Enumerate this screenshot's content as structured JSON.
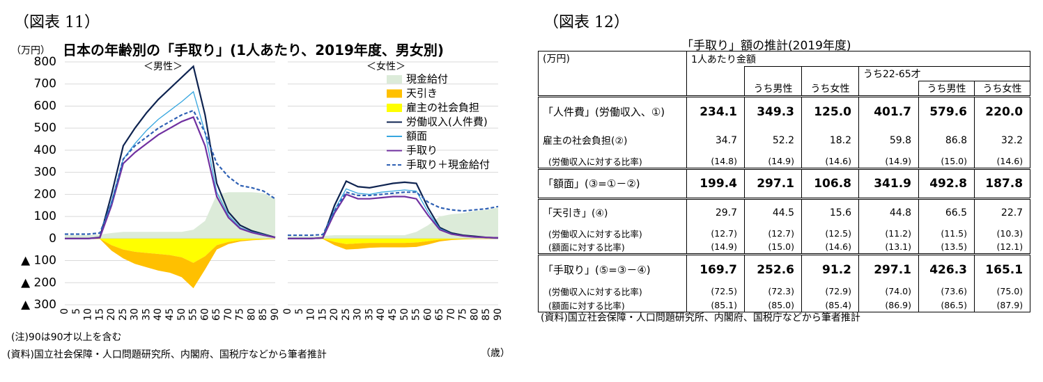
{
  "figure11": {
    "label": "（図表 11）",
    "title": "日本の年齢別の「手取り」(1人あたり、2019年度、男女別)",
    "unit": "（万円）",
    "x_unit": "（歳）",
    "notes": [
      "(注)90は90才以上を含む",
      "(資料)国立社会保障・人口問題研究所、内閣府、国税庁などから筆者推計"
    ],
    "legend": [
      {
        "name": "現金給付",
        "color": "#dcebd9",
        "kind": "area"
      },
      {
        "name": "天引き",
        "color": "#ffc000",
        "kind": "bar"
      },
      {
        "name": "雇主の社会負担",
        "color": "#ffff00",
        "kind": "bar"
      },
      {
        "name": "労働収入(人件費)",
        "color": "#0e2350",
        "kind": "line"
      },
      {
        "name": "額面",
        "color": "#36a6df",
        "kind": "line"
      },
      {
        "name": "手取り",
        "color": "#7030a0",
        "kind": "line"
      },
      {
        "name": "手取り＋現金給付",
        "color": "#2e60b4",
        "kind": "dashed"
      }
    ]
  },
  "chart_data": [
    {
      "type": "area-line",
      "subtitle": "＜男性＞",
      "x": [
        0,
        5,
        10,
        15,
        20,
        25,
        30,
        35,
        40,
        45,
        50,
        55,
        60,
        65,
        70,
        75,
        80,
        85,
        90
      ],
      "xlim": [
        0,
        90
      ],
      "xticks": [
        0,
        5,
        10,
        15,
        20,
        25,
        30,
        35,
        40,
        45,
        50,
        55,
        60,
        65,
        70,
        75,
        80,
        85,
        90
      ],
      "ylim": [
        -300,
        800
      ],
      "yticks": [
        {
          "value": -300,
          "label": "▲ 300"
        },
        {
          "value": -200,
          "label": "▲ 200"
        },
        {
          "value": -100,
          "label": "▲ 100"
        },
        0,
        100,
        200,
        300,
        400,
        500,
        600,
        700,
        800
      ],
      "grid": true,
      "series": [
        {
          "values": [
            15,
            15,
            15,
            18,
            25,
            30,
            30,
            30,
            30,
            30,
            30,
            40,
            80,
            200,
            210,
            210,
            210,
            205,
            180
          ]
        },
        {
          "values": [
            0,
            0,
            0,
            -1,
            -25,
            -40,
            -55,
            -65,
            -75,
            -80,
            -90,
            -115,
            -60,
            -20,
            -10,
            -5,
            -3,
            -2,
            -1
          ]
        },
        {
          "values": [
            0,
            0,
            0,
            -1,
            -30,
            -50,
            -60,
            -65,
            -70,
            -75,
            -85,
            -110,
            -80,
            -30,
            -15,
            -8,
            -5,
            -3,
            -1
          ]
        },
        {
          "values": [
            0,
            0,
            0,
            5,
            200,
            420,
            500,
            570,
            630,
            680,
            730,
            780,
            560,
            250,
            120,
            60,
            35,
            20,
            5
          ]
        },
        {
          "values": [
            0,
            0,
            0,
            4,
            170,
            360,
            430,
            490,
            540,
            580,
            620,
            665,
            480,
            210,
            105,
            50,
            30,
            18,
            5
          ]
        },
        {
          "values": [
            0,
            0,
            0,
            4,
            150,
            340,
            390,
            430,
            470,
            500,
            530,
            550,
            420,
            190,
            95,
            45,
            27,
            15,
            5
          ]
        },
        {
          "values": [
            20,
            20,
            20,
            25,
            160,
            360,
            420,
            460,
            500,
            530,
            560,
            580,
            480,
            340,
            280,
            240,
            230,
            215,
            180
          ]
        }
      ]
    },
    {
      "type": "area-line",
      "subtitle": "＜女性＞",
      "x": [
        0,
        5,
        10,
        15,
        20,
        25,
        30,
        35,
        40,
        45,
        50,
        55,
        60,
        65,
        70,
        75,
        80,
        85,
        90
      ],
      "xlim": [
        0,
        90
      ],
      "xticks": [
        0,
        5,
        10,
        15,
        20,
        25,
        30,
        35,
        40,
        45,
        50,
        55,
        60,
        65,
        70,
        75,
        80,
        85,
        90
      ],
      "ylim": [
        -300,
        800
      ],
      "grid": true,
      "legend": "upper right",
      "series": [
        {
          "values": [
            10,
            10,
            10,
            12,
            15,
            15,
            15,
            15,
            15,
            15,
            15,
            30,
            60,
            100,
            110,
            115,
            125,
            130,
            140
          ]
        },
        {
          "values": [
            0,
            0,
            0,
            -1,
            -15,
            -25,
            -25,
            -22,
            -20,
            -20,
            -20,
            -20,
            -15,
            -8,
            -4,
            -2,
            -1,
            -1,
            0
          ]
        },
        {
          "values": [
            0,
            0,
            0,
            -1,
            -15,
            -25,
            -22,
            -20,
            -20,
            -20,
            -20,
            -18,
            -12,
            -5,
            -3,
            -2,
            -1,
            -1,
            0
          ]
        },
        {
          "values": [
            0,
            0,
            0,
            3,
            150,
            260,
            235,
            230,
            240,
            250,
            255,
            250,
            140,
            50,
            25,
            15,
            10,
            5,
            3
          ]
        },
        {
          "values": [
            0,
            0,
            0,
            3,
            130,
            225,
            205,
            200,
            210,
            215,
            220,
            215,
            120,
            45,
            22,
            13,
            8,
            5,
            3
          ]
        },
        {
          "values": [
            0,
            0,
            0,
            3,
            115,
            200,
            180,
            180,
            185,
            190,
            190,
            180,
            105,
            40,
            20,
            12,
            7,
            5,
            3
          ]
        },
        {
          "values": [
            15,
            15,
            15,
            18,
            125,
            210,
            195,
            195,
            200,
            205,
            210,
            210,
            165,
            140,
            130,
            125,
            130,
            135,
            145
          ]
        }
      ]
    }
  ],
  "figure12": {
    "label": "（図表 12）",
    "title": "「手取り」額の推計(2019年度)",
    "header": {
      "unit": "(万円)",
      "total": "1人あたり金額",
      "male": "うち男性",
      "female": "うち女性",
      "age_group": "うち22-65才",
      "age_male": "うち男性",
      "age_female": "うち女性"
    },
    "groups": [
      [
        {
          "label": "「人件費」(労働収入、①)",
          "main": true,
          "values": [
            "234.1",
            "349.3",
            "125.0",
            "401.7",
            "579.6",
            "220.0"
          ]
        },
        {
          "label": "雇主の社会負担(②)",
          "values": [
            "34.7",
            "52.2",
            "18.2",
            "59.8",
            "86.8",
            "32.2"
          ]
        },
        {
          "label": "(労働収入に対する比率)",
          "ratio": true,
          "values": [
            "(14.8)",
            "(14.9)",
            "(14.6)",
            "(14.9)",
            "(15.0)",
            "(14.6)"
          ]
        }
      ],
      [
        {
          "label": "「額面」(③=①－②)",
          "main": true,
          "values": [
            "199.4",
            "297.1",
            "106.8",
            "341.9",
            "492.8",
            "187.8"
          ]
        }
      ],
      [
        {
          "label": "「天引き」(④)",
          "values": [
            "29.7",
            "44.5",
            "15.6",
            "44.8",
            "66.5",
            "22.7"
          ]
        },
        {
          "label": "(労働収入に対する比率)",
          "ratio": true,
          "values": [
            "(12.7)",
            "(12.7)",
            "(12.5)",
            "(11.2)",
            "(11.5)",
            "(10.3)"
          ]
        },
        {
          "label": "(額面に対する比率)",
          "ratio": true,
          "values": [
            "(14.9)",
            "(15.0)",
            "(14.6)",
            "(13.1)",
            "(13.5)",
            "(12.1)"
          ]
        }
      ],
      [
        {
          "label": "「手取り」(⑤=③－④)",
          "main": true,
          "values": [
            "169.7",
            "252.6",
            "91.2",
            "297.1",
            "426.3",
            "165.1"
          ]
        },
        {
          "label": "(労働収入に対する比率)",
          "ratio": true,
          "values": [
            "(72.5)",
            "(72.3)",
            "(72.9)",
            "(74.0)",
            "(73.6)",
            "(75.0)"
          ]
        },
        {
          "label": "(額面に対する比率)",
          "ratio": true,
          "values": [
            "(85.1)",
            "(85.0)",
            "(85.4)",
            "(86.9)",
            "(86.5)",
            "(87.9)"
          ]
        }
      ]
    ],
    "source": "(資料)国立社会保障・人口問題研究所、内閣府、国税庁などから筆者推計"
  }
}
